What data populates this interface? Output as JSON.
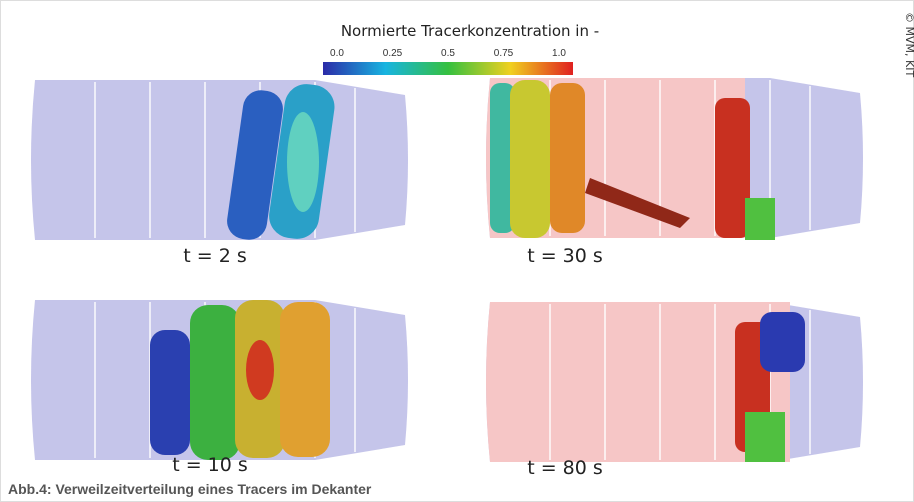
{
  "figure": {
    "legend": {
      "title": "Normierte Tracerkonzentration in -",
      "ticks": [
        "0.0",
        "0.25",
        "0.5",
        "0.75",
        "1.0"
      ]
    },
    "copyright": "© MVM, KIT",
    "panels": [
      {
        "label": "t = 2 s"
      },
      {
        "label": "t = 30 s"
      },
      {
        "label": "t = 10 s"
      },
      {
        "label": "t = 80 s"
      }
    ],
    "caption": "Abb.4: Verweilzeitverteilung eines Tracers im Dekanter"
  }
}
